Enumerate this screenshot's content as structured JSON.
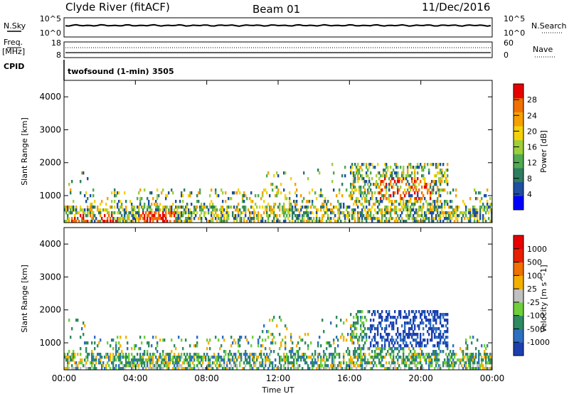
{
  "header": {
    "station": "Clyde River (fitACF)",
    "beam": "Beam 01",
    "date": "11/Dec/2016"
  },
  "noise_panel": {
    "left_label": "N.Sky",
    "left_ticks": [
      "10^5",
      "10^0"
    ],
    "right_label": "N.Search",
    "right_ticks": [
      "10^5",
      "10^0"
    ],
    "sky_level": 0.62
  },
  "freq_panel": {
    "left_label_1": "Freq.",
    "left_label_2": "[MHz]",
    "left_ticks": [
      "18",
      "8"
    ],
    "right_label": "Nave",
    "right_ticks": [
      "60",
      "0"
    ]
  },
  "cpid": {
    "label": "CPID",
    "program": "twofsound (1-min)",
    "id": "3505"
  },
  "chart_data": [
    {
      "type": "heatmap",
      "title": "",
      "ylabel": "Slant Range [km]",
      "ylim": [
        180,
        4500
      ],
      "yticks": [
        "4000",
        "3000",
        "2000",
        "1000"
      ],
      "xlim": [
        0,
        24
      ],
      "colorbar": {
        "label": "Power [dB]",
        "ticks": [
          "28",
          "24",
          "20",
          "16",
          "12",
          "8",
          "4"
        ],
        "colors": [
          "#0000ff",
          "#1e4fa0",
          "#2e7d60",
          "#4faa50",
          "#9ccf3a",
          "#f4d20a",
          "#f5a000",
          "#f07000",
          "#e80000"
        ],
        "range": [
          0,
          32
        ]
      }
    },
    {
      "type": "heatmap",
      "title": "",
      "ylabel": "Slant Range [km]",
      "ylim": [
        180,
        4500
      ],
      "yticks": [
        "4000",
        "3000",
        "2000",
        "1000"
      ],
      "xlim": [
        0,
        24
      ],
      "xlabel": "Time UT",
      "xticks": [
        "00:00",
        "04:00",
        "08:00",
        "12:00",
        "16:00",
        "20:00",
        "00:00"
      ],
      "colorbar": {
        "label": "Velocity [m s^-1]",
        "ticks": [
          "1000",
          "500",
          "100",
          "25",
          "-25",
          "-100",
          "-500",
          "-1000"
        ],
        "colors": [
          "#1c3fb0",
          "#2e6fc0",
          "#2e8a60",
          "#6fcf3a",
          "#c0c0c0",
          "#f4b000",
          "#f07000",
          "#e82000",
          "#e80000"
        ]
      }
    }
  ]
}
